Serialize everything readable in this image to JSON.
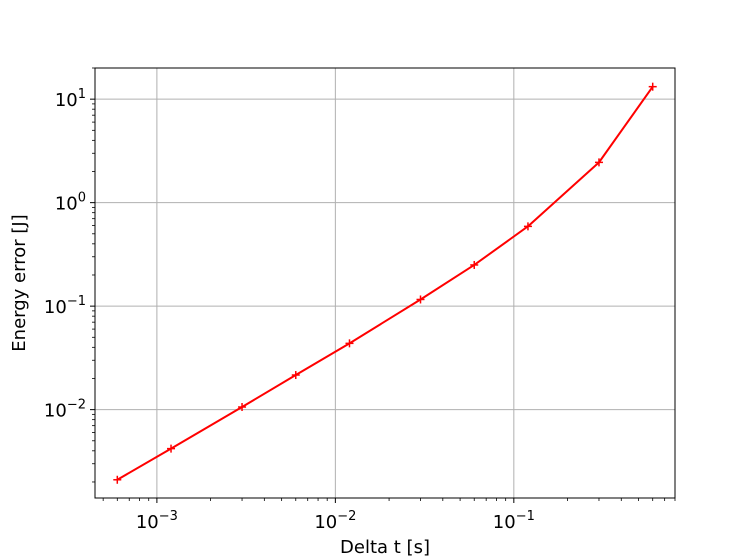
{
  "chart_data": {
    "type": "line",
    "title": "",
    "xlabel": "Delta t [s]",
    "ylabel": "Energy error [J]",
    "xscale": "log",
    "yscale": "log",
    "xlim": [
      0.00045,
      0.8
    ],
    "ylim": [
      0.0014,
      20
    ],
    "grid": true,
    "x_ticks": [
      {
        "value": 0.001,
        "base": "10",
        "exp": "−3"
      },
      {
        "value": 0.01,
        "base": "10",
        "exp": "−2"
      },
      {
        "value": 0.1,
        "base": "10",
        "exp": "−1"
      }
    ],
    "y_ticks": [
      {
        "value": 0.01,
        "base": "10",
        "exp": "−2"
      },
      {
        "value": 0.1,
        "base": "10",
        "exp": "−1"
      },
      {
        "value": 1,
        "base": "10",
        "exp": "0"
      },
      {
        "value": 10,
        "base": "10",
        "exp": "1"
      }
    ],
    "series": [
      {
        "color": "#ff0000",
        "marker": "plus",
        "x": [
          0.0006,
          0.0012,
          0.003,
          0.006,
          0.012,
          0.03,
          0.06,
          0.12,
          0.3,
          0.6
        ],
        "y": [
          0.0021,
          0.0042,
          0.0106,
          0.0216,
          0.0437,
          0.116,
          0.25,
          0.59,
          2.45,
          13.2
        ]
      }
    ]
  }
}
